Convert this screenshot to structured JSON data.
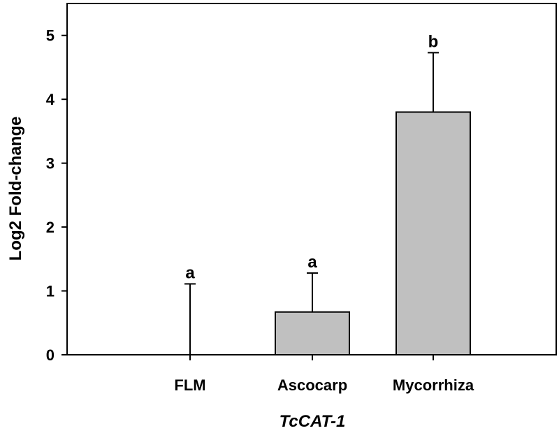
{
  "chart_data": {
    "type": "bar",
    "title": "",
    "xlabel": "TcCAT-1",
    "ylabel": "Log2 Fold-change",
    "categories": [
      "FLM",
      "Ascocarp",
      "Mycorrhiza"
    ],
    "values": [
      0,
      0.67,
      3.8
    ],
    "errors": [
      1.11,
      0.61,
      0.93
    ],
    "significance": [
      "a",
      "a",
      "b"
    ],
    "ylim": [
      0,
      5.5
    ],
    "yticks": [
      0,
      1,
      2,
      3,
      4,
      5
    ],
    "grid": false,
    "bar_color": "#c0c0c0",
    "edge_color": "#000000"
  }
}
